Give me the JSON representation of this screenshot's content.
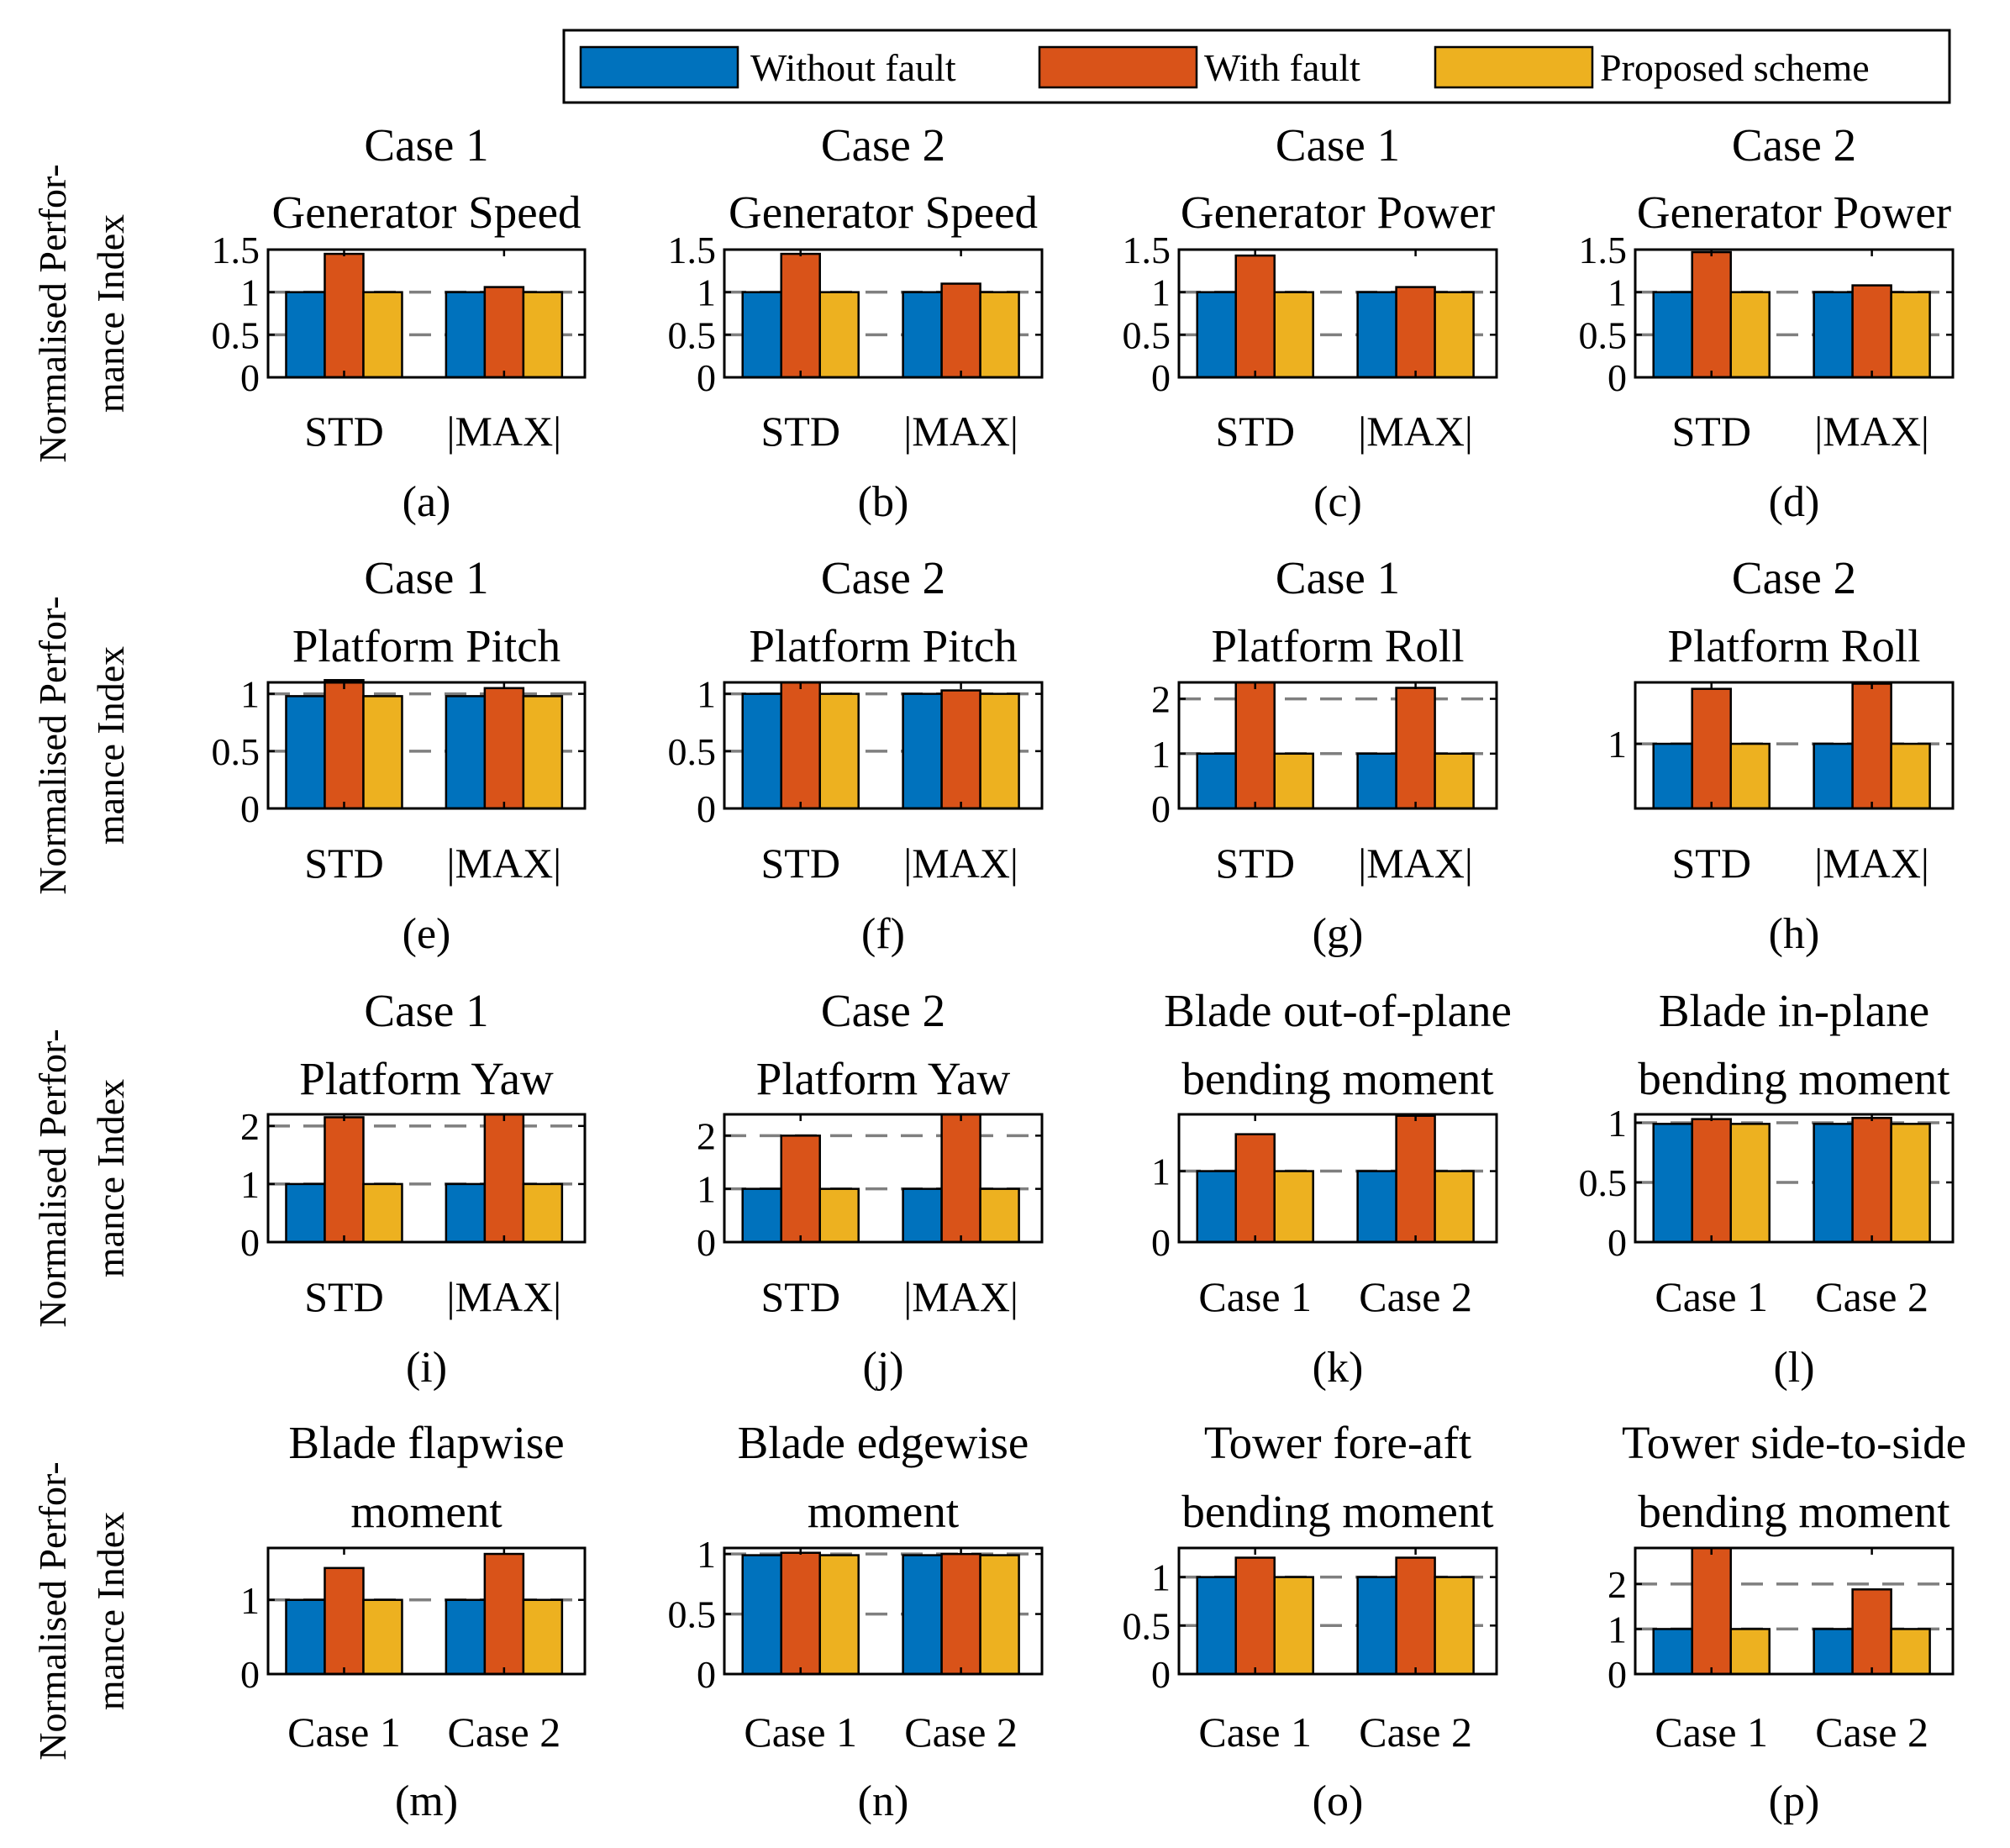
{
  "legend": {
    "items": [
      {
        "label": "Without fault",
        "color": "#0072BD"
      },
      {
        "label": "With fault",
        "color": "#D95319"
      },
      {
        "label": "Proposed scheme",
        "color": "#EDB120"
      }
    ]
  },
  "ylabel_lines": [
    "Normalised Perfor-",
    "mance Index"
  ],
  "chart_data": [
    {
      "type": "bar",
      "tag": "(a)",
      "title": [
        "Case 1",
        "Generator Speed"
      ],
      "categories": [
        "STD",
        "|MAX|"
      ],
      "ylim": [
        0,
        1.5
      ],
      "yticks": [
        "0",
        "0.5",
        "1",
        "1.5"
      ],
      "yticks_v": [
        0,
        0.5,
        1,
        1.5
      ],
      "gridlines": [
        0.5,
        1
      ],
      "series": [
        {
          "name": "Without fault",
          "values": [
            1.0,
            1.0
          ]
        },
        {
          "name": "With fault",
          "values": [
            1.45,
            1.06
          ]
        },
        {
          "name": "Proposed scheme",
          "values": [
            1.0,
            1.0
          ]
        }
      ]
    },
    {
      "type": "bar",
      "tag": "(b)",
      "title": [
        "Case 2",
        "Generator Speed"
      ],
      "categories": [
        "STD",
        "|MAX|"
      ],
      "ylim": [
        0,
        1.5
      ],
      "yticks": [
        "0",
        "0.5",
        "1",
        "1.5"
      ],
      "yticks_v": [
        0,
        0.5,
        1,
        1.5
      ],
      "gridlines": [
        0.5,
        1
      ],
      "series": [
        {
          "name": "Without fault",
          "values": [
            1.0,
            1.0
          ]
        },
        {
          "name": "With fault",
          "values": [
            1.45,
            1.1
          ]
        },
        {
          "name": "Proposed scheme",
          "values": [
            1.0,
            1.0
          ]
        }
      ]
    },
    {
      "type": "bar",
      "tag": "(c)",
      "title": [
        "Case 1",
        "Generator Power"
      ],
      "categories": [
        "STD",
        "|MAX|"
      ],
      "ylim": [
        0,
        1.5
      ],
      "yticks": [
        "0",
        "0.5",
        "1",
        "1.5"
      ],
      "yticks_v": [
        0,
        0.5,
        1,
        1.5
      ],
      "gridlines": [
        0.5,
        1
      ],
      "series": [
        {
          "name": "Without fault",
          "values": [
            1.0,
            1.0
          ]
        },
        {
          "name": "With fault",
          "values": [
            1.43,
            1.06
          ]
        },
        {
          "name": "Proposed scheme",
          "values": [
            1.0,
            1.0
          ]
        }
      ]
    },
    {
      "type": "bar",
      "tag": "(d)",
      "title": [
        "Case 2",
        "Generator Power"
      ],
      "categories": [
        "STD",
        "|MAX|"
      ],
      "ylim": [
        0,
        1.5
      ],
      "yticks": [
        "0",
        "0.5",
        "1",
        "1.5"
      ],
      "yticks_v": [
        0,
        0.5,
        1,
        1.5
      ],
      "gridlines": [
        0.5,
        1
      ],
      "series": [
        {
          "name": "Without fault",
          "values": [
            1.0,
            1.0
          ]
        },
        {
          "name": "With fault",
          "values": [
            1.47,
            1.08
          ]
        },
        {
          "name": "Proposed scheme",
          "values": [
            1.0,
            1.0
          ]
        }
      ]
    },
    {
      "type": "bar",
      "tag": "(e)",
      "title": [
        "Case 1",
        "Platform Pitch"
      ],
      "categories": [
        "STD",
        "|MAX|"
      ],
      "ylim": [
        0,
        1.1
      ],
      "yticks": [
        "0",
        "0.5",
        "1"
      ],
      "yticks_v": [
        0,
        0.5,
        1
      ],
      "gridlines": [
        0.5,
        1
      ],
      "series": [
        {
          "name": "Without fault",
          "values": [
            0.98,
            0.98
          ]
        },
        {
          "name": "With fault",
          "values": [
            1.12,
            1.05
          ]
        },
        {
          "name": "Proposed scheme",
          "values": [
            0.98,
            0.98
          ]
        }
      ]
    },
    {
      "type": "bar",
      "tag": "(f)",
      "title": [
        "Case 2",
        "Platform Pitch"
      ],
      "categories": [
        "STD",
        "|MAX|"
      ],
      "ylim": [
        0,
        1.1
      ],
      "yticks": [
        "0",
        "0.5",
        "1"
      ],
      "yticks_v": [
        0,
        0.5,
        1
      ],
      "gridlines": [
        0.5,
        1
      ],
      "series": [
        {
          "name": "Without fault",
          "values": [
            1.0,
            1.0
          ]
        },
        {
          "name": "With fault",
          "values": [
            1.1,
            1.03
          ]
        },
        {
          "name": "Proposed scheme",
          "values": [
            1.0,
            1.0
          ]
        }
      ]
    },
    {
      "type": "bar",
      "tag": "(g)",
      "title": [
        "Case 1",
        "Platform Roll"
      ],
      "categories": [
        "STD",
        "|MAX|"
      ],
      "ylim": [
        0,
        2.3
      ],
      "yticks": [
        "0",
        "1",
        "2"
      ],
      "yticks_v": [
        0,
        1,
        2
      ],
      "gridlines": [
        1,
        2
      ],
      "series": [
        {
          "name": "Without fault",
          "values": [
            1.0,
            1.0
          ]
        },
        {
          "name": "With fault",
          "values": [
            2.3,
            2.2
          ]
        },
        {
          "name": "Proposed scheme",
          "values": [
            1.0,
            1.0
          ]
        }
      ]
    },
    {
      "type": "bar",
      "tag": "(h)",
      "title": [
        "Case 2",
        "Platform Roll"
      ],
      "categories": [
        "STD",
        "|MAX|"
      ],
      "ylim": [
        0,
        1.95
      ],
      "yticks": [
        "1"
      ],
      "yticks_v": [
        1
      ],
      "gridlines": [
        1
      ],
      "series": [
        {
          "name": "Without fault",
          "values": [
            1.0,
            1.0
          ]
        },
        {
          "name": "With fault",
          "values": [
            1.85,
            1.93
          ]
        },
        {
          "name": "Proposed scheme",
          "values": [
            1.0,
            1.0
          ]
        }
      ]
    },
    {
      "type": "bar",
      "tag": "(i)",
      "title": [
        "Case 1",
        "Platform Yaw"
      ],
      "categories": [
        "STD",
        "|MAX|"
      ],
      "ylim": [
        0,
        2.2
      ],
      "yticks": [
        "0",
        "1",
        "2"
      ],
      "yticks_v": [
        0,
        1,
        2
      ],
      "gridlines": [
        1,
        2
      ],
      "series": [
        {
          "name": "Without fault",
          "values": [
            1.0,
            1.0
          ]
        },
        {
          "name": "With fault",
          "values": [
            2.15,
            2.2
          ]
        },
        {
          "name": "Proposed scheme",
          "values": [
            1.0,
            1.0
          ]
        }
      ]
    },
    {
      "type": "bar",
      "tag": "(j)",
      "title": [
        "Case 2",
        "Platform Yaw"
      ],
      "categories": [
        "STD",
        "|MAX|"
      ],
      "ylim": [
        0,
        2.4
      ],
      "yticks": [
        "0",
        "1",
        "2"
      ],
      "yticks_v": [
        0,
        1,
        2
      ],
      "gridlines": [
        1,
        2
      ],
      "series": [
        {
          "name": "Without fault",
          "values": [
            1.0,
            1.0
          ]
        },
        {
          "name": "With fault",
          "values": [
            2.0,
            2.4
          ]
        },
        {
          "name": "Proposed scheme",
          "values": [
            1.0,
            1.0
          ]
        }
      ]
    },
    {
      "type": "bar",
      "tag": "(k)",
      "title": [
        "Blade out-of-plane",
        "bending moment"
      ],
      "categories": [
        "Case 1",
        "Case 2"
      ],
      "ylim": [
        0,
        1.8
      ],
      "yticks": [
        "0",
        "1"
      ],
      "yticks_v": [
        0,
        1
      ],
      "gridlines": [
        1
      ],
      "series": [
        {
          "name": "Without fault",
          "values": [
            1.0,
            1.0
          ]
        },
        {
          "name": "With fault",
          "values": [
            1.52,
            1.78
          ]
        },
        {
          "name": "Proposed scheme",
          "values": [
            1.0,
            1.0
          ]
        }
      ]
    },
    {
      "type": "bar",
      "tag": "(l)",
      "title": [
        "Blade in-plane",
        "bending moment"
      ],
      "categories": [
        "Case 1",
        "Case 2"
      ],
      "ylim": [
        0,
        1.07
      ],
      "yticks": [
        "0",
        "0.5",
        "1"
      ],
      "yticks_v": [
        0,
        0.5,
        1
      ],
      "gridlines": [
        0.5,
        1
      ],
      "series": [
        {
          "name": "Without fault",
          "values": [
            0.99,
            0.99
          ]
        },
        {
          "name": "With fault",
          "values": [
            1.03,
            1.04
          ]
        },
        {
          "name": "Proposed scheme",
          "values": [
            0.99,
            0.99
          ]
        }
      ]
    },
    {
      "type": "bar",
      "tag": "(m)",
      "title": [
        "Blade flapwise",
        "moment"
      ],
      "categories": [
        "Case 1",
        "Case 2"
      ],
      "ylim": [
        0,
        1.7
      ],
      "yticks": [
        "0",
        "1"
      ],
      "yticks_v": [
        0,
        1
      ],
      "gridlines": [
        1
      ],
      "series": [
        {
          "name": "Without fault",
          "values": [
            1.0,
            1.0
          ]
        },
        {
          "name": "With fault",
          "values": [
            1.43,
            1.62
          ]
        },
        {
          "name": "Proposed scheme",
          "values": [
            1.0,
            1.0
          ]
        }
      ]
    },
    {
      "type": "bar",
      "tag": "(n)",
      "title": [
        "Blade edgewise",
        "moment"
      ],
      "categories": [
        "Case 1",
        "Case 2"
      ],
      "ylim": [
        0,
        1.05
      ],
      "yticks": [
        "0",
        "0.5",
        "1"
      ],
      "yticks_v": [
        0,
        0.5,
        1
      ],
      "gridlines": [
        0.5,
        1
      ],
      "series": [
        {
          "name": "Without fault",
          "values": [
            0.99,
            0.99
          ]
        },
        {
          "name": "With fault",
          "values": [
            1.01,
            1.0
          ]
        },
        {
          "name": "Proposed scheme",
          "values": [
            0.99,
            0.99
          ]
        }
      ]
    },
    {
      "type": "bar",
      "tag": "(o)",
      "title": [
        "Tower fore-aft",
        "bending moment"
      ],
      "categories": [
        "Case 1",
        "Case 2"
      ],
      "ylim": [
        0,
        1.3
      ],
      "yticks": [
        "0",
        "0.5",
        "1"
      ],
      "yticks_v": [
        0,
        0.5,
        1
      ],
      "gridlines": [
        0.5,
        1
      ],
      "series": [
        {
          "name": "Without fault",
          "values": [
            1.0,
            1.0
          ]
        },
        {
          "name": "With fault",
          "values": [
            1.2,
            1.2
          ]
        },
        {
          "name": "Proposed scheme",
          "values": [
            1.0,
            1.0
          ]
        }
      ]
    },
    {
      "type": "bar",
      "tag": "(p)",
      "title": [
        "Tower side-to-side",
        "bending moment"
      ],
      "categories": [
        "Case 1",
        "Case 2"
      ],
      "ylim": [
        0,
        2.8
      ],
      "yticks": [
        "0",
        "1",
        "2"
      ],
      "yticks_v": [
        0,
        1,
        2
      ],
      "gridlines": [
        1,
        2
      ],
      "series": [
        {
          "name": "Without fault",
          "values": [
            1.0,
            1.0
          ]
        },
        {
          "name": "With fault",
          "values": [
            2.8,
            1.88
          ]
        },
        {
          "name": "Proposed scheme",
          "values": [
            1.0,
            1.0
          ]
        }
      ]
    }
  ]
}
